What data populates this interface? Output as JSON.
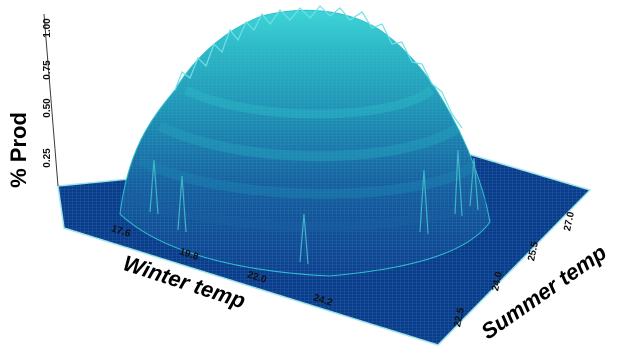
{
  "chart_data": {
    "type": "surface3d",
    "title": "",
    "zlabel": "% Prod",
    "xlabel": "Winter temp",
    "ylabel": "Summer temp",
    "z_ticks": [
      "0.25",
      "0.50",
      "0.75",
      "1.00"
    ],
    "x_ticks": [
      "17.6",
      "19.8",
      "22.0",
      "24.2"
    ],
    "y_ticks": [
      "22.5",
      "24.0",
      "25.5",
      "27.0"
    ],
    "xlim": [
      16.5,
      25.3
    ],
    "ylim": [
      21.75,
      27.75
    ],
    "zlim": [
      0,
      1
    ],
    "peak": {
      "winter_temp": 20.9,
      "summer_temp": 24.75,
      "prod": 1.0
    },
    "spread": {
      "winter_temp": 2.6,
      "summer_temp": 1.9
    },
    "colors": {
      "floor": "#0b3c8c",
      "low": "#104a94",
      "mid": "#1b86ad",
      "high": "#2bb7c6",
      "top": "#35cfd4",
      "edge": "#9fe6ea",
      "frame": "#3a3a3a"
    }
  }
}
